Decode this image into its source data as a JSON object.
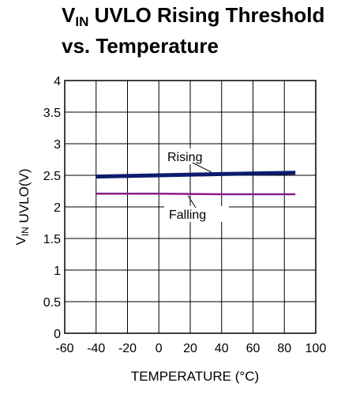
{
  "chart_data": {
    "type": "line",
    "title_main": "V",
    "title_sub": "IN",
    "title_rest": " UVLO Rising Threshold",
    "title_line2": "vs. Temperature",
    "xlabel": "TEMPERATURE (°C)",
    "ylabel_main": "V",
    "ylabel_sub": "IN",
    "ylabel_rest": " UVLO(V)",
    "xlim": [
      -60,
      100
    ],
    "ylim": [
      0,
      4
    ],
    "xticks": [
      -60,
      -40,
      -20,
      0,
      20,
      40,
      60,
      80,
      100
    ],
    "xtick_labels": [
      "-60",
      "-40",
      "-20",
      "0",
      "20",
      "40",
      "60",
      "80",
      "100"
    ],
    "yticks": [
      0,
      0.5,
      1,
      1.5,
      2,
      2.5,
      3,
      3.5,
      4
    ],
    "ytick_labels": [
      "0",
      "0.5",
      "1",
      "1.5",
      "2",
      "2.5",
      "3",
      "3.5",
      "4"
    ],
    "grid": true,
    "series": [
      {
        "name": "Rising",
        "color": "#0d1b6e",
        "x": [
          -40,
          0,
          40,
          87
        ],
        "y": [
          2.48,
          2.5,
          2.52,
          2.54
        ]
      },
      {
        "name": "Falling",
        "color": "#8b1a8b",
        "x": [
          -40,
          0,
          40,
          87
        ],
        "y": [
          2.21,
          2.21,
          2.2,
          2.2
        ]
      }
    ],
    "annotations": [
      {
        "text": "Rising",
        "series": 0
      },
      {
        "text": "Falling",
        "series": 1
      }
    ]
  }
}
